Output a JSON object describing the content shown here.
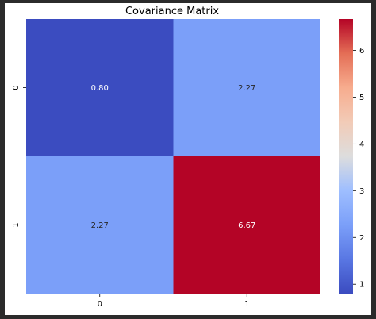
{
  "chart_data": {
    "type": "heatmap",
    "title": "Covariance Matrix",
    "x_categories": [
      "0",
      "1"
    ],
    "y_categories": [
      "0",
      "1"
    ],
    "values": [
      [
        0.8,
        2.27
      ],
      [
        2.27,
        6.67
      ]
    ],
    "cell_labels": [
      [
        "0.80",
        "2.27"
      ],
      [
        "2.27",
        "6.67"
      ]
    ],
    "colormap": "coolwarm",
    "colorbar": {
      "range": [
        0.8,
        6.67
      ],
      "ticks": [
        1,
        2,
        3,
        4,
        5,
        6
      ],
      "tick_labels": [
        "1",
        "2",
        "3",
        "4",
        "5",
        "6"
      ]
    },
    "colors": {
      "low": "#3b4cc0",
      "mid": "#dddddd",
      "high": "#b40426"
    }
  }
}
